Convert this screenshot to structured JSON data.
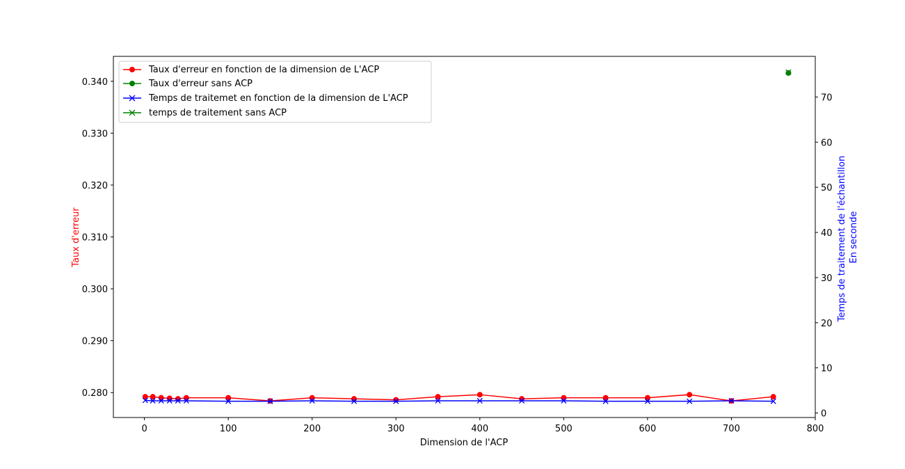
{
  "chart_data": {
    "type": "line",
    "xlabel": "Dimension de l'ACP",
    "ylabel_left": "Taux d'erreur",
    "ylabel_right": [
      "Temps de traitement de l'échantillon",
      "En seconde"
    ],
    "xlim": [
      -37,
      800
    ],
    "ylim_left": [
      0.2752,
      0.3448
    ],
    "ylim_right": [
      -1,
      79
    ],
    "xticks": [
      0,
      100,
      200,
      300,
      400,
      500,
      600,
      700,
      800
    ],
    "yticks_left": [
      0.28,
      0.29,
      0.3,
      0.31,
      0.32,
      0.33,
      0.34
    ],
    "yticks_left_labels": [
      "0.280",
      "0.290",
      "0.300",
      "0.310",
      "0.320",
      "0.330",
      "0.340"
    ],
    "yticks_right": [
      0,
      10,
      20,
      30,
      40,
      50,
      60,
      70
    ],
    "legend_position": "top-left",
    "colors": {
      "error_color": "#ff0000",
      "time_color": "#0000ff",
      "noacp_color": "#008000"
    },
    "series": [
      {
        "name": "Taux d'erreur en fonction de la dimension de L'ACP",
        "axis": "left",
        "marker": "circle",
        "color": "#ff0000",
        "x": [
          1,
          10,
          20,
          30,
          40,
          50,
          100,
          150,
          200,
          250,
          300,
          350,
          400,
          450,
          500,
          550,
          600,
          650,
          700,
          750
        ],
        "values": [
          0.2792,
          0.2792,
          0.279,
          0.2789,
          0.2788,
          0.279,
          0.279,
          0.2784,
          0.279,
          0.2788,
          0.2786,
          0.2792,
          0.2796,
          0.2788,
          0.279,
          0.279,
          0.279,
          0.2796,
          0.2784,
          0.2792
        ]
      },
      {
        "name": "Taux d'erreur sans ACP",
        "axis": "left",
        "marker": "circle",
        "color": "#008000",
        "x": [
          768
        ],
        "values": [
          0.3416
        ]
      },
      {
        "name": "Temps de traitemet en fonction de la dimension de L'ACP",
        "axis": "right",
        "marker": "x",
        "color": "#0000ff",
        "x": [
          1,
          10,
          20,
          30,
          40,
          50,
          100,
          150,
          200,
          250,
          300,
          350,
          400,
          450,
          500,
          550,
          600,
          650,
          700,
          750
        ],
        "values": [
          2.8,
          2.7,
          2.7,
          2.7,
          2.7,
          2.7,
          2.6,
          2.6,
          2.7,
          2.6,
          2.6,
          2.7,
          2.7,
          2.7,
          2.7,
          2.6,
          2.6,
          2.6,
          2.7,
          2.6
        ]
      },
      {
        "name": "temps de traitement sans ACP",
        "axis": "right",
        "marker": "x",
        "color": "#008000",
        "x": [
          768
        ],
        "values": [
          75.5
        ]
      }
    ]
  }
}
